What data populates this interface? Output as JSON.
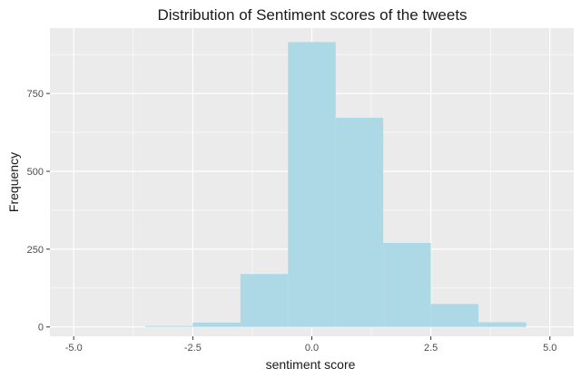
{
  "chart_data": {
    "type": "bar",
    "title": "Distribution of Sentiment scores of the tweets",
    "xlabel": "sentiment score",
    "ylabel": "Frequency",
    "xlim": [
      -5.5,
      5.5
    ],
    "ylim": [
      -30,
      960
    ],
    "x_ticks": [
      -5.0,
      -2.5,
      0.0,
      2.5,
      5.0
    ],
    "x_tick_labels": [
      "-5.0",
      "-2.5",
      "0.0",
      "2.5",
      "5.0"
    ],
    "y_ticks": [
      0,
      250,
      500,
      750
    ],
    "y_tick_labels": [
      "0",
      "250",
      "500",
      "750"
    ],
    "grid": true,
    "bin_width": 1,
    "bins": [
      {
        "center": -3,
        "count": 3
      },
      {
        "center": -2,
        "count": 14
      },
      {
        "center": -1,
        "count": 170
      },
      {
        "center": 0,
        "count": 915
      },
      {
        "center": 1,
        "count": 672
      },
      {
        "center": 2,
        "count": 270
      },
      {
        "center": 3,
        "count": 74
      },
      {
        "center": 4,
        "count": 15
      }
    ],
    "bar_color": "#add8e6",
    "panel_background": "#ebebeb",
    "grid_color": "#ffffff"
  }
}
